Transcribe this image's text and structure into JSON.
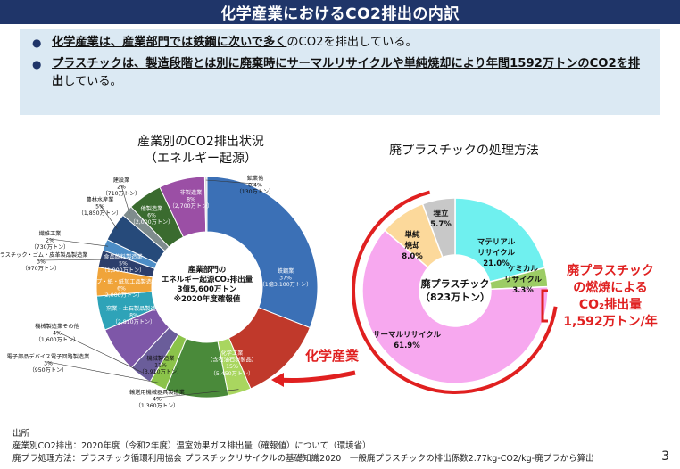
{
  "header": {
    "title": "化学産業におけるCO2排出の内訳"
  },
  "summary": {
    "bullet1": {
      "strong": "化学産業は、産業部門では鉄鋼に次いで多く",
      "rest": "のCO2を排出している。"
    },
    "bullet2": {
      "strong": "プラスチックは、製造段階とは別に廃棄時にサーマルリサイクルや単純焼却により年間1592万トンのCO2を排出",
      "rest": "している。"
    }
  },
  "chart_data": [
    {
      "type": "pie",
      "title": "産業別のCO2排出状況",
      "subtitle": "（エネルギー起源）",
      "center_text": [
        "産業部門の",
        "エネルギー起源CO₂排出量",
        "3億5,600万トン",
        "※2020年度確報値"
      ],
      "slices": [
        {
          "name": "鉄鋼業",
          "pct": 37,
          "amount": "1億3,100万トン",
          "pct_label": "37%",
          "amount_label": "（1億3,100万トン）",
          "color": "#3b70b6"
        },
        {
          "name": "化学工業\n（含石油石炭製品）",
          "pct": 15,
          "amount": "5,450万トン",
          "pct_label": "15%",
          "amount_label": "（5,450万トン）",
          "color": "#c0392b"
        },
        {
          "name": "輸送用機械器具製造業",
          "pct": 4,
          "amount": "1,360万トン",
          "pct_label": "4%",
          "amount_label": "（1,360万トン）",
          "color": "#a9d65f"
        },
        {
          "name": "機械製造業",
          "pct": 11,
          "amount": "3,910万トン",
          "pct_label": "11%",
          "amount_label": "（3,910万トン）",
          "color": "#4a8a3a"
        },
        {
          "name": "電子部品デバイス電子回路製造業",
          "pct": 3,
          "amount": "950万トン",
          "pct_label": "3%",
          "amount_label": "（950万トン）",
          "color": "#8bc34a"
        },
        {
          "name": "機械製造業その他",
          "pct": 4,
          "amount": "1,600万トン",
          "pct_label": "4%",
          "amount_label": "（1,600万トン）",
          "color": "#6a5d9a"
        },
        {
          "name": "窯業・土石製品製造業",
          "pct": 8,
          "amount": "2,810万トン",
          "pct_label": "8%",
          "amount_label": "（2,810万トン）",
          "color": "#7e57a8"
        },
        {
          "name": "パルプ・紙・紙加工品製造業",
          "pct": 6,
          "amount": "2,000万トン",
          "pct_label": "6%",
          "amount_label": "（2,000万トン）",
          "color": "#2ea3b8"
        },
        {
          "name": "食品飲料製造業",
          "pct": 5,
          "amount": "1,900万トン",
          "pct_label": "5%",
          "amount_label": "（1,900万トン）",
          "color": "#f0a43a"
        },
        {
          "name": "プラスチック・ゴム・皮革製品製造業",
          "pct": 3,
          "amount": "970万トン",
          "pct_label": "3%",
          "amount_label": "（970万トン）",
          "color": "#2c3e6b"
        },
        {
          "name": "繊維工業",
          "pct": 2,
          "amount": "730万トン",
          "pct_label": "2%",
          "amount_label": "（730万トン）",
          "color": "#4c8dc6"
        },
        {
          "name": "農林水産業",
          "pct": 5,
          "amount": "1,850万トン",
          "pct_label": "5%",
          "amount_label": "（1,850万トン）",
          "color": "#264a7a"
        },
        {
          "name": "建設業",
          "pct": 2,
          "amount": "710万トン",
          "pct_label": "2%",
          "amount_label": "（710万トン）",
          "color": "#7f8c8d"
        },
        {
          "name": "他製造業",
          "pct": 6,
          "amount": "2,000万トン",
          "pct_label": "6%",
          "amount_label": "（2,000万トン）",
          "color": "#3a6b2f"
        },
        {
          "name": "非製造業",
          "pct": 8,
          "amount": "2,700万トン",
          "pct_label": "8%",
          "amount_label": "（2,700万トン）",
          "color": "#9b4fa5"
        },
        {
          "name": "鉱業他",
          "pct": 0.4,
          "amount": "130万トン",
          "pct_label": "0.4%",
          "amount_label": "（130万トン）",
          "color": "#dcdcdc"
        }
      ]
    },
    {
      "type": "pie",
      "title": "廃プラスチックの処理方法",
      "center_text": [
        "廃プラスチック",
        "（823万トン）"
      ],
      "slices": [
        {
          "name": "マテリアル\nリサイクル",
          "pct": 21.0,
          "pct_label": "21.0%",
          "color": "#6ff0ef"
        },
        {
          "name": "ケミカル\nリサイクル",
          "pct": 3.3,
          "pct_label": "3.3%",
          "color": "#9ccc65"
        },
        {
          "name": "サーマルリサイクル",
          "pct": 61.9,
          "pct_label": "61.9%",
          "color": "#f7a8ef"
        },
        {
          "name": "単純\n焼却",
          "pct": 8.0,
          "pct_label": "8.0%",
          "color": "#fcd99b"
        },
        {
          "name": "埋立",
          "pct": 5.7,
          "pct_label": "5.7%",
          "color": "#c8c8c8"
        }
      ]
    }
  ],
  "callouts": {
    "chemical": "化学産業",
    "plastic": [
      "廃プラスチック",
      "の燃焼による",
      "CO₂排出量",
      "1,592万トン/年"
    ]
  },
  "source": {
    "heading": "出所",
    "line1": "産業別CO2排出：2020年度（令和2年度）温室効果ガス排出量（確報値）について（環境省）",
    "line2": "廃プラ処理方法：プラスチック循環利用協会 プラスチックリサイクルの基礎知識2020　一般廃プラスチックの排出係数2.77kg-CO2/kg-廃プラから算出"
  },
  "page_number": "3",
  "colors": {
    "header": "#1f3569",
    "summary_bg": "#dbe9f3",
    "accent_red": "#e02020"
  }
}
